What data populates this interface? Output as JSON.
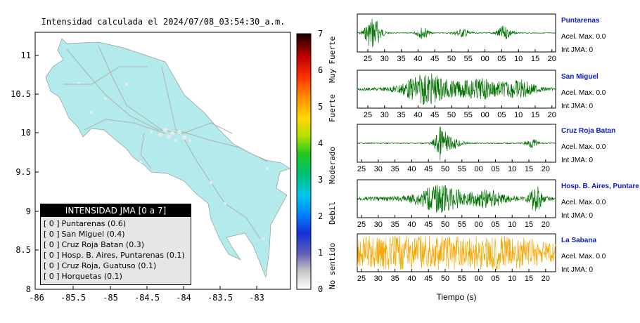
{
  "chart_data": [
    {
      "type": "map",
      "title": "Intensidad calculada el 2024/07/08_03:54:30_a.m.",
      "x_ticks": [
        "-86",
        "-85.5",
        "-85",
        "-84.5",
        "-84",
        "-83.5",
        "-83"
      ],
      "y_ticks": [
        "11",
        "10.5",
        "10",
        "9.5",
        "9",
        "8.5",
        "8"
      ],
      "xlim": [
        -86,
        -82.5
      ],
      "ylim": [
        8,
        11.3
      ],
      "colorbar": {
        "ticks": [
          "0",
          "1",
          "2",
          "3",
          "4",
          "5",
          "6",
          "7"
        ],
        "range": [
          0,
          7
        ],
        "labels": [
          "Muy Fuerte",
          "Fuerte",
          "Moderado",
          "Debil",
          "No sentido"
        ]
      },
      "legend": {
        "header": "INTENSIDAD JMA [0 a 7]",
        "items": [
          {
            "level": "[ 0 ]",
            "name": "Puntarenas (0.6)"
          },
          {
            "level": "[ 0 ]",
            "name": "San Miguel (0.4)"
          },
          {
            "level": "[ 0 ]",
            "name": "Cruz Roja Batan (0.3)"
          },
          {
            "level": "[ 0 ]",
            "name": "Hosp. B. Aires, Puntarenas (0.1)"
          },
          {
            "level": "[ 0 ]",
            "name": "Cruz Roja, Guatuso (0.1)"
          },
          {
            "level": "[ 0 ]",
            "name": "Horquetas (0.1)"
          }
        ]
      }
    },
    {
      "type": "line",
      "xlabel": "Tiempo (s)",
      "x_tick_labels": [
        "25",
        "30",
        "35",
        "40",
        "45",
        "50",
        "55",
        "00",
        "05",
        "10",
        "15",
        "20"
      ],
      "panels": [
        {
          "name": "Puntarenas",
          "accel": "Acel. Max. 0.0",
          "jma": "Int JMA: 0",
          "color": "#007000"
        },
        {
          "name": "San Miguel",
          "accel": "Acel. Max. 0.0",
          "jma": "Int JMA: 0",
          "color": "#007000"
        },
        {
          "name": "Cruz Roja Batan",
          "accel": "Acel. Max. 0.0",
          "jma": "Int JMA: 0",
          "color": "#007000"
        },
        {
          "name": "Hosp. B. Aires, Puntare",
          "accel": "Acel. Max. 0.0",
          "jma": "Int JMA: 0",
          "color": "#007000"
        },
        {
          "name": "La Sabana",
          "accel": "Acel. Max. 0.0",
          "jma": "Int JMA: 0",
          "color": "#f5a800"
        }
      ]
    }
  ]
}
